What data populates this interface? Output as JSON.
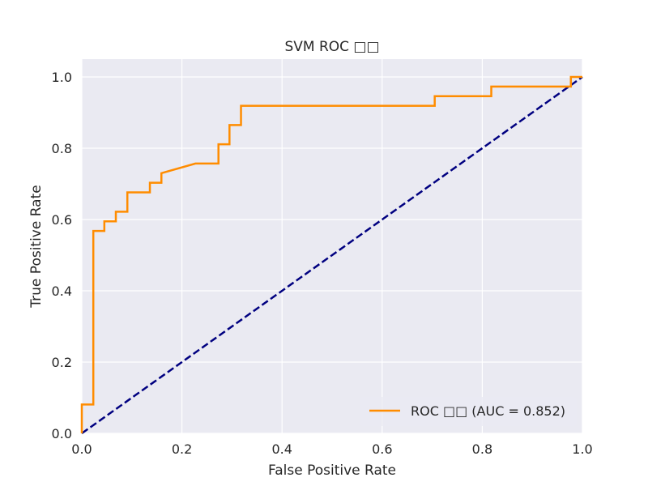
{
  "chart_data": {
    "type": "line",
    "title": "SVM ROC □□",
    "xlabel": "False Positive Rate",
    "ylabel": "True Positive Rate",
    "xlim": [
      0.0,
      1.0
    ],
    "ylim": [
      0.0,
      1.05
    ],
    "xticks": [
      0.0,
      0.2,
      0.4,
      0.6,
      0.8,
      1.0
    ],
    "yticks": [
      0.0,
      0.2,
      0.4,
      0.6,
      0.8,
      1.0
    ],
    "xtick_labels": [
      "0.0",
      "0.2",
      "0.4",
      "0.6",
      "0.8",
      "1.0"
    ],
    "ytick_labels": [
      "0.0",
      "0.2",
      "0.4",
      "0.6",
      "0.8",
      "1.0"
    ],
    "grid": true,
    "background": "#EAEAF2",
    "grid_color": "#FFFFFF",
    "legend_position": "lower-right",
    "series": [
      {
        "name": "ROC □□ (AUC = 0.852)",
        "color": "#FF8C00",
        "style": "solid",
        "x": [
          0.0,
          0.0,
          0.023,
          0.023,
          0.045,
          0.045,
          0.068,
          0.068,
          0.091,
          0.091,
          0.136,
          0.136,
          0.159,
          0.159,
          0.227,
          0.273,
          0.273,
          0.295,
          0.295,
          0.318,
          0.318,
          0.705,
          0.705,
          0.818,
          0.818,
          0.977,
          0.977,
          1.0,
          1.0
        ],
        "y": [
          0.0,
          0.081,
          0.081,
          0.568,
          0.568,
          0.595,
          0.595,
          0.622,
          0.622,
          0.676,
          0.676,
          0.703,
          0.703,
          0.73,
          0.757,
          0.757,
          0.811,
          0.811,
          0.865,
          0.865,
          0.919,
          0.919,
          0.946,
          0.946,
          0.973,
          0.973,
          1.0,
          1.0,
          1.0
        ]
      },
      {
        "color": "#000080",
        "style": "dashed",
        "x": [
          0.0,
          1.0
        ],
        "y": [
          0.0,
          1.0
        ]
      }
    ]
  }
}
